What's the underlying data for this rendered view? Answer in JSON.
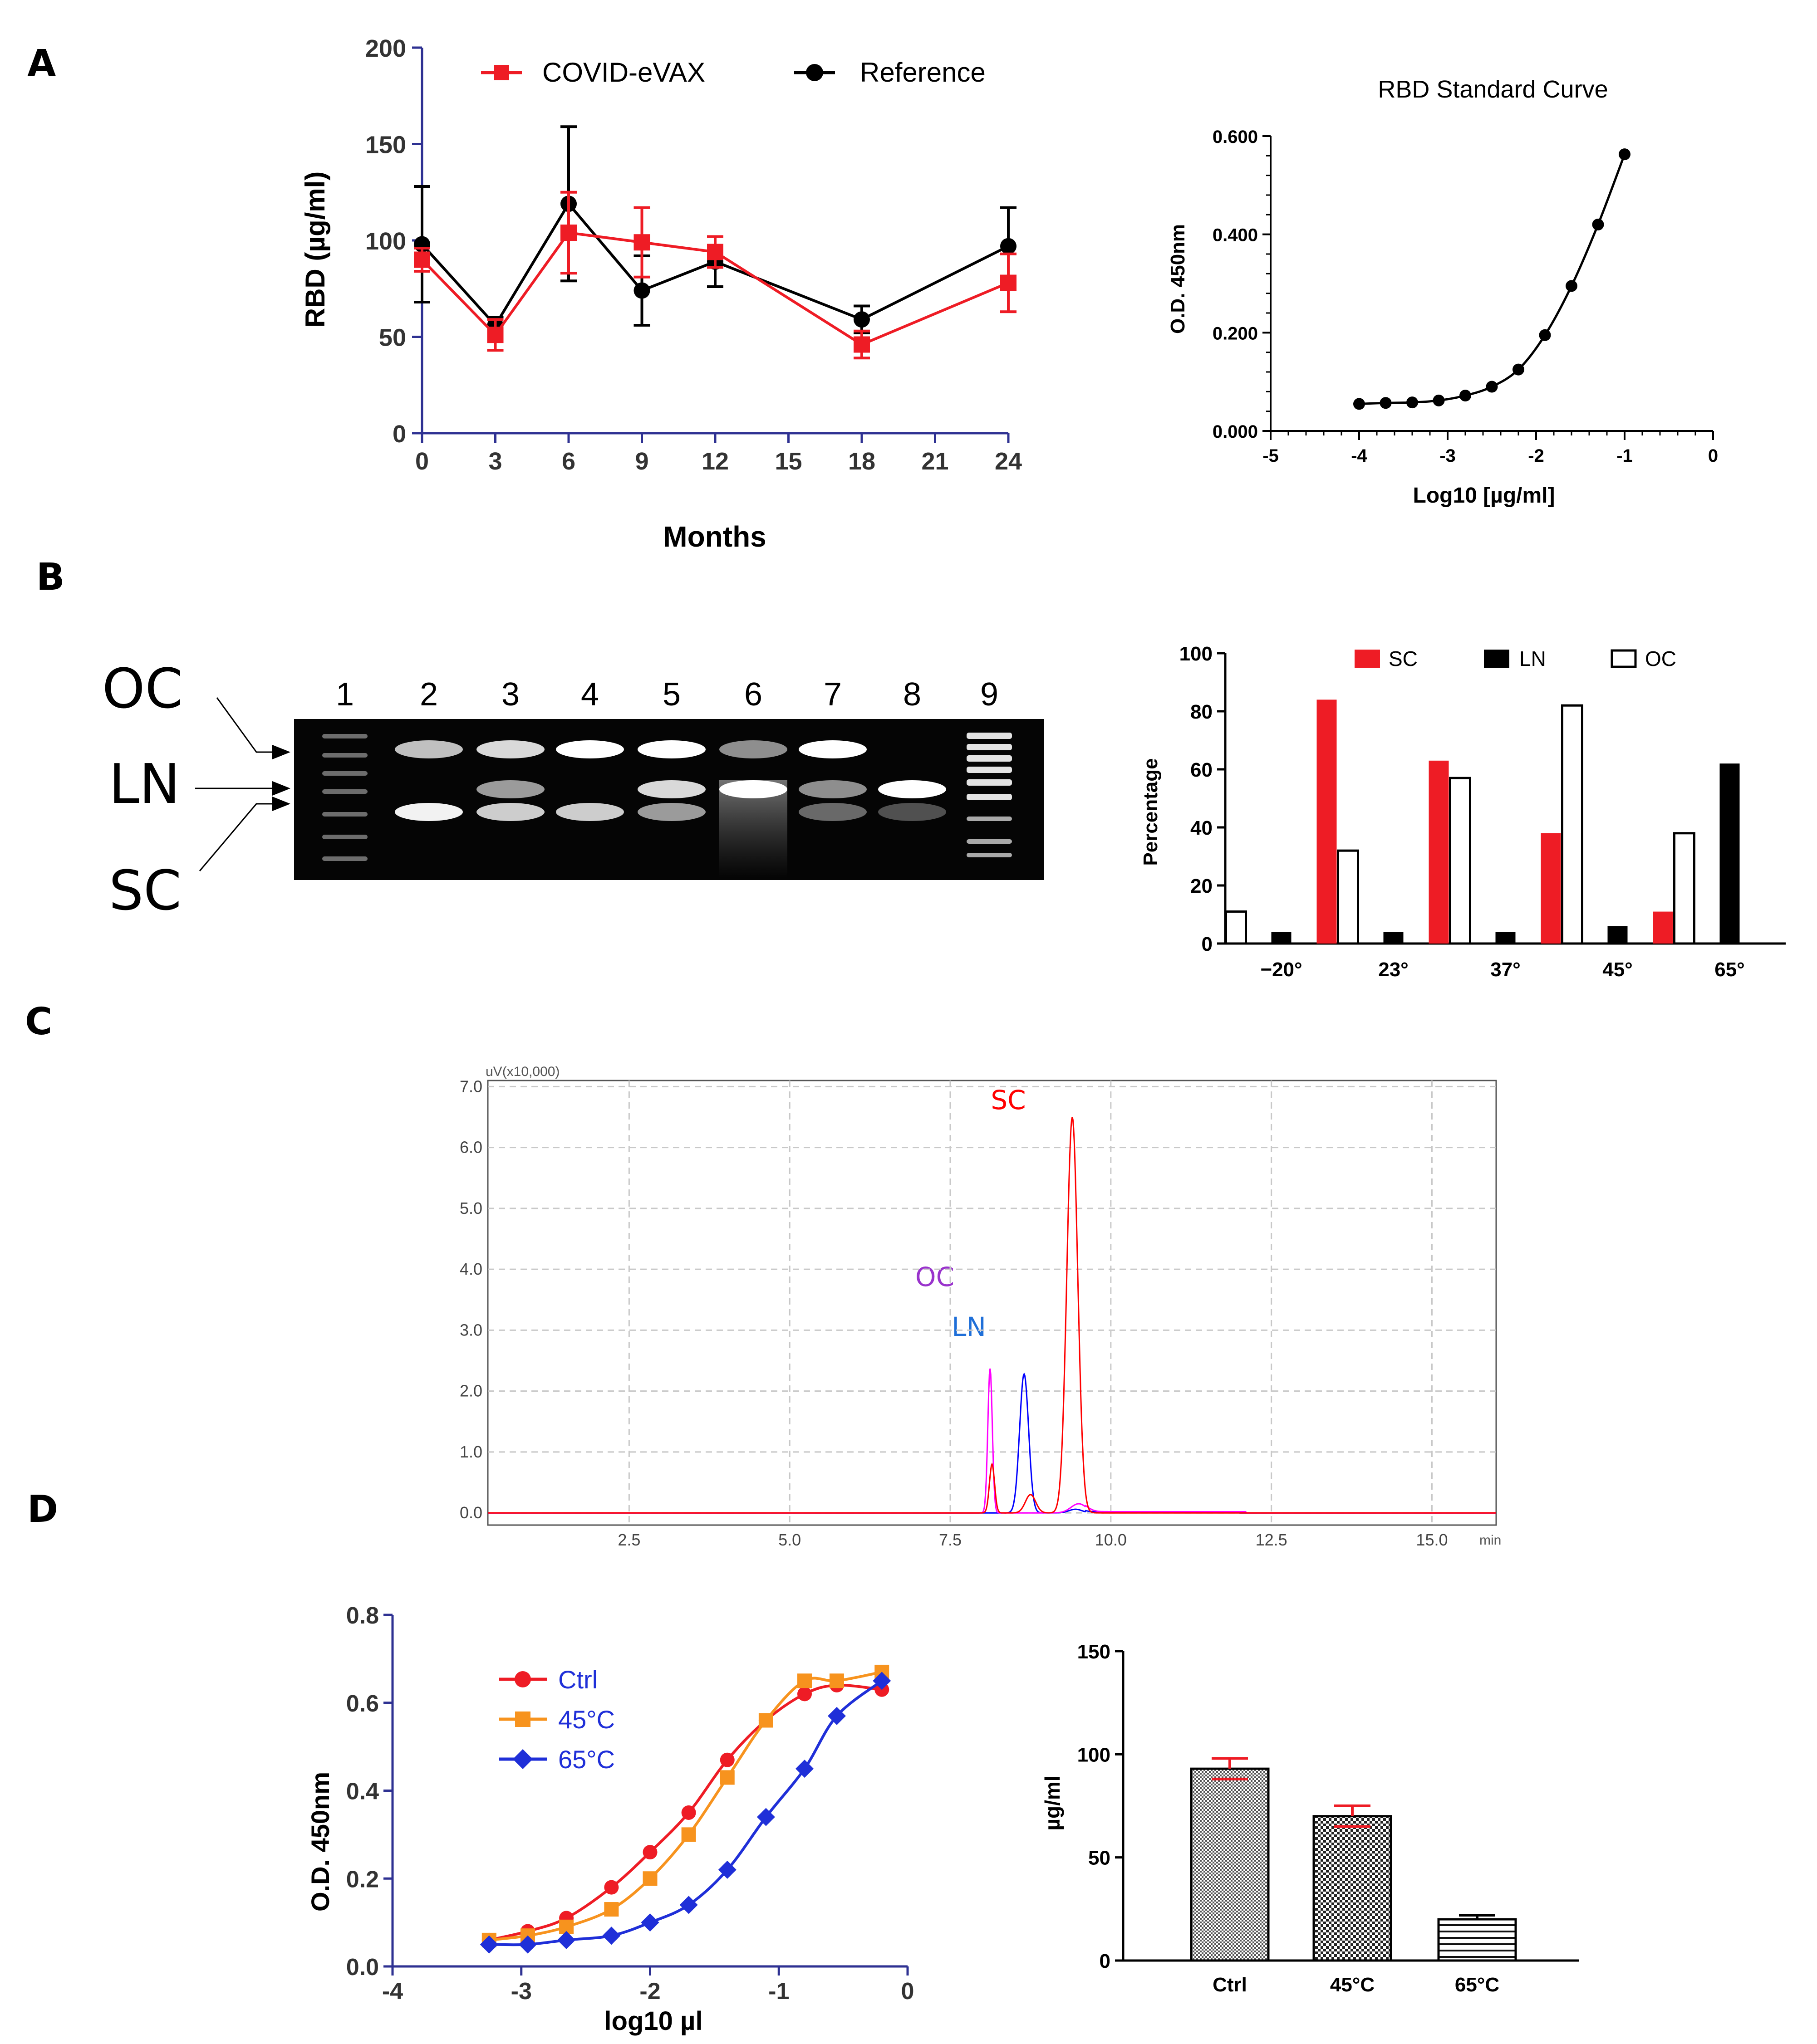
{
  "panel_labels": [
    "A",
    "B",
    "C",
    "D"
  ],
  "chart_data": [
    {
      "id": "A1",
      "type": "line",
      "title": "",
      "xlabel": "Months",
      "ylabel": "RBD (µg/ml)",
      "xlim": [
        0,
        24
      ],
      "ylim": [
        0,
        200
      ],
      "xticks": [
        "0",
        "3",
        "6",
        "9",
        "12",
        "15",
        "18",
        "21",
        "24"
      ],
      "yticks": [
        "0",
        "50",
        "100",
        "150",
        "200"
      ],
      "legend_position": "top",
      "series": [
        {
          "name": "COVID-eVAX",
          "color": "#ee1c25",
          "marker": "square",
          "x": [
            0,
            3,
            6,
            9,
            12,
            18,
            24
          ],
          "y": [
            90,
            51,
            104,
            99,
            94,
            46,
            78
          ],
          "err": [
            6,
            8,
            21,
            18,
            8,
            7,
            15
          ]
        },
        {
          "name": "Reference",
          "color": "#000000",
          "marker": "circle",
          "x": [
            0,
            3,
            6,
            9,
            12,
            18,
            24
          ],
          "y": [
            98,
            56,
            119,
            74,
            89,
            59,
            97
          ],
          "err": [
            30,
            4,
            40,
            18,
            13,
            7,
            20
          ]
        }
      ]
    },
    {
      "id": "A2",
      "type": "line",
      "title": "RBD Standard Curve",
      "xlabel": "Log10 [µg/ml]",
      "ylabel": "O.D. 450nm",
      "xlim": [
        -5,
        0
      ],
      "ylim": [
        0,
        0.6
      ],
      "xticks": [
        "-5",
        "-4",
        "-3",
        "-2",
        "-1",
        "0"
      ],
      "yticks": [
        "0.000",
        "0.200",
        "0.400",
        "0.600"
      ],
      "series": [
        {
          "name": "",
          "color": "#000000",
          "marker": "circle",
          "x": [
            -4,
            -3.7,
            -3.4,
            -3.1,
            -2.8,
            -2.5,
            -2.2,
            -1.9,
            -1.6,
            -1.3,
            -1.0
          ],
          "y": [
            0.055,
            0.057,
            0.058,
            0.062,
            0.072,
            0.09,
            0.125,
            0.195,
            0.295,
            0.42,
            0.563
          ]
        }
      ]
    },
    {
      "id": "B2",
      "type": "bar",
      "title": "",
      "xlabel": "",
      "ylabel": "Percentage",
      "ylim": [
        0,
        100
      ],
      "yticks": [
        "0",
        "20",
        "40",
        "60",
        "80",
        "100"
      ],
      "categories": [
        "−20°",
        "23°",
        "37°",
        "45°",
        "65°"
      ],
      "legend_position": "top",
      "series": [
        {
          "name": "OC",
          "color": "#ffffff",
          "values": [
            11,
            32,
            57,
            82,
            38
          ]
        },
        {
          "name": "LN",
          "color": "#000000",
          "values": [
            4,
            4,
            4,
            6,
            62
          ]
        },
        {
          "name": "SC",
          "color": "#ee1c25",
          "values": [
            84,
            63,
            38,
            11,
            0
          ]
        }
      ]
    },
    {
      "id": "C",
      "type": "line",
      "title": "",
      "x_unit": "min",
      "y_unit": "uV(x10,000)",
      "xlim": [
        0.3,
        16.0
      ],
      "ylim": [
        -0.2,
        7.1
      ],
      "xticks": [
        "2.5",
        "5.0",
        "7.5",
        "10.0",
        "12.5",
        "15.0"
      ],
      "yticks": [
        "0.0",
        "1.0",
        "2.0",
        "3.0",
        "4.0",
        "5.0",
        "6.0",
        "7.0"
      ],
      "series": [
        {
          "name": "SC",
          "color": "#ff0000",
          "peak_x": 9.4,
          "peak_y": 6.5
        },
        {
          "name": "LN",
          "color": "#0000ff",
          "peak_x": 8.65,
          "peak_y": 2.28
        },
        {
          "name": "OC",
          "color": "#ff00ff",
          "peak_x": 8.12,
          "peak_y": 2.37
        }
      ]
    },
    {
      "id": "D1",
      "type": "line",
      "title": "",
      "xlabel": "log10 µl",
      "ylabel": "O.D. 450nm",
      "xlim": [
        -4,
        0
      ],
      "ylim": [
        0,
        0.8
      ],
      "xticks": [
        "-4",
        "-3",
        "-2",
        "-1",
        "0"
      ],
      "yticks": [
        "0.0",
        "0.2",
        "0.4",
        "0.6",
        "0.8"
      ],
      "legend_position": "top-left",
      "series": [
        {
          "name": "Ctrl",
          "color": "#ee1c25",
          "marker": "circle",
          "x": [
            -3.25,
            -2.95,
            -2.65,
            -2.3,
            -2.0,
            -1.7,
            -1.4,
            -1.1,
            -0.8,
            -0.55,
            -0.2
          ],
          "y": [
            0.06,
            0.08,
            0.11,
            0.18,
            0.26,
            0.35,
            0.47,
            0.56,
            0.62,
            0.64,
            0.63
          ]
        },
        {
          "name": "45°C",
          "color": "#f7931e",
          "marker": "square",
          "x": [
            -3.25,
            -2.95,
            -2.65,
            -2.3,
            -2.0,
            -1.7,
            -1.4,
            -1.1,
            -0.8,
            -0.55,
            -0.2
          ],
          "y": [
            0.06,
            0.07,
            0.09,
            0.13,
            0.2,
            0.3,
            0.43,
            0.56,
            0.65,
            0.65,
            0.67
          ]
        },
        {
          "name": "65°C",
          "color": "#1f2fd8",
          "marker": "diamond",
          "x": [
            -3.25,
            -2.95,
            -2.65,
            -2.3,
            -2.0,
            -1.7,
            -1.4,
            -1.1,
            -0.8,
            -0.55,
            -0.2
          ],
          "y": [
            0.05,
            0.05,
            0.06,
            0.07,
            0.1,
            0.14,
            0.22,
            0.34,
            0.45,
            0.57,
            0.65
          ]
        }
      ]
    },
    {
      "id": "D2",
      "type": "bar",
      "title": "",
      "xlabel": "",
      "ylabel": "µg/ml",
      "ylim": [
        0,
        150
      ],
      "yticks": [
        "0",
        "50",
        "100",
        "150"
      ],
      "categories": [
        "Ctrl",
        "45°C",
        "65°C"
      ],
      "values": [
        93,
        70,
        20
      ],
      "err": [
        5,
        5,
        2
      ]
    }
  ],
  "gel": {
    "lane_labels": [
      "1",
      "2",
      "3",
      "4",
      "5",
      "6",
      "7",
      "8",
      "9"
    ],
    "band_labels": [
      "OC",
      "LN",
      "SC"
    ]
  }
}
